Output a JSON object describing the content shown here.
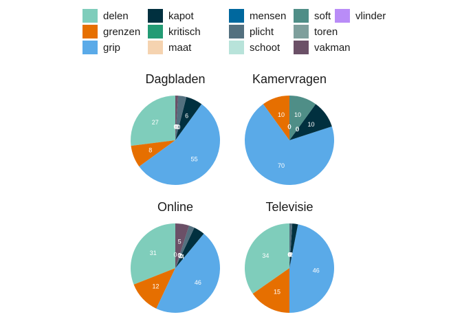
{
  "chart_data": {
    "type": "pie",
    "legend_position": "top",
    "legend": [
      {
        "label": "delen",
        "color": "#7fcdbb"
      },
      {
        "label": "grenzen",
        "color": "#e66f00"
      },
      {
        "label": "grip",
        "color": "#5aaae8"
      },
      {
        "label": "kapot",
        "color": "#01303f"
      },
      {
        "label": "kritisch",
        "color": "#239b74"
      },
      {
        "label": "maat",
        "color": "#f5d3b0"
      },
      {
        "label": "mensen",
        "color": "#00689e"
      },
      {
        "label": "plicht",
        "color": "#53707f"
      },
      {
        "label": "schoot",
        "color": "#b8e3da"
      },
      {
        "label": "soft",
        "color": "#4f8e87"
      },
      {
        "label": "toren",
        "color": "#7e9f9c"
      },
      {
        "label": "vakman",
        "color": "#6b5067"
      },
      {
        "label": "vlinder",
        "color": "#b98cf7"
      }
    ],
    "panels": [
      {
        "title": "Dagbladen",
        "slices": [
          {
            "category": "delen",
            "value": 27
          },
          {
            "category": "grenzen",
            "value": 8
          },
          {
            "category": "grip",
            "value": 55
          },
          {
            "category": "kapot",
            "value": 6
          },
          {
            "category": "kritisch",
            "value": 0
          },
          {
            "category": "maat",
            "value": 0
          },
          {
            "category": "mensen",
            "value": 0
          },
          {
            "category": "plicht",
            "value": 3
          },
          {
            "category": "schoot",
            "value": 0
          },
          {
            "category": "soft",
            "value": 0
          },
          {
            "category": "toren",
            "value": 0
          },
          {
            "category": "vakman",
            "value": 1
          },
          {
            "category": "vlinder",
            "value": 0
          }
        ]
      },
      {
        "title": "Kamervragen",
        "slices": [
          {
            "category": "delen",
            "value": 0
          },
          {
            "category": "grenzen",
            "value": 10
          },
          {
            "category": "grip",
            "value": 70
          },
          {
            "category": "kapot",
            "value": 10
          },
          {
            "category": "kritisch",
            "value": 0
          },
          {
            "category": "maat",
            "value": 0
          },
          {
            "category": "mensen",
            "value": 0
          },
          {
            "category": "plicht",
            "value": 0
          },
          {
            "category": "schoot",
            "value": 0
          },
          {
            "category": "soft",
            "value": 10
          },
          {
            "category": "toren",
            "value": 0
          },
          {
            "category": "vakman",
            "value": 0
          },
          {
            "category": "vlinder",
            "value": 0
          }
        ]
      },
      {
        "title": "Online",
        "slices": [
          {
            "category": "delen",
            "value": 31
          },
          {
            "category": "grenzen",
            "value": 12
          },
          {
            "category": "grip",
            "value": 46
          },
          {
            "category": "kapot",
            "value": 4
          },
          {
            "category": "kritisch",
            "value": 0
          },
          {
            "category": "maat",
            "value": 0
          },
          {
            "category": "mensen",
            "value": 0
          },
          {
            "category": "plicht",
            "value": 2
          },
          {
            "category": "schoot",
            "value": 0
          },
          {
            "category": "soft",
            "value": 0
          },
          {
            "category": "toren",
            "value": 0
          },
          {
            "category": "vakman",
            "value": 5
          },
          {
            "category": "vlinder",
            "value": 0
          }
        ]
      },
      {
        "title": "Televisie",
        "slices": [
          {
            "category": "delen",
            "value": 34
          },
          {
            "category": "grenzen",
            "value": 15
          },
          {
            "category": "grip",
            "value": 46
          },
          {
            "category": "kapot",
            "value": 2
          },
          {
            "category": "kritisch",
            "value": 0
          },
          {
            "category": "maat",
            "value": 0
          },
          {
            "category": "mensen",
            "value": 0
          },
          {
            "category": "plicht",
            "value": 1
          },
          {
            "category": "schoot",
            "value": 0
          },
          {
            "category": "soft",
            "value": 0
          },
          {
            "category": "toren",
            "value": 0
          },
          {
            "category": "vakman",
            "value": 0
          },
          {
            "category": "vlinder",
            "value": 0
          }
        ]
      }
    ]
  }
}
